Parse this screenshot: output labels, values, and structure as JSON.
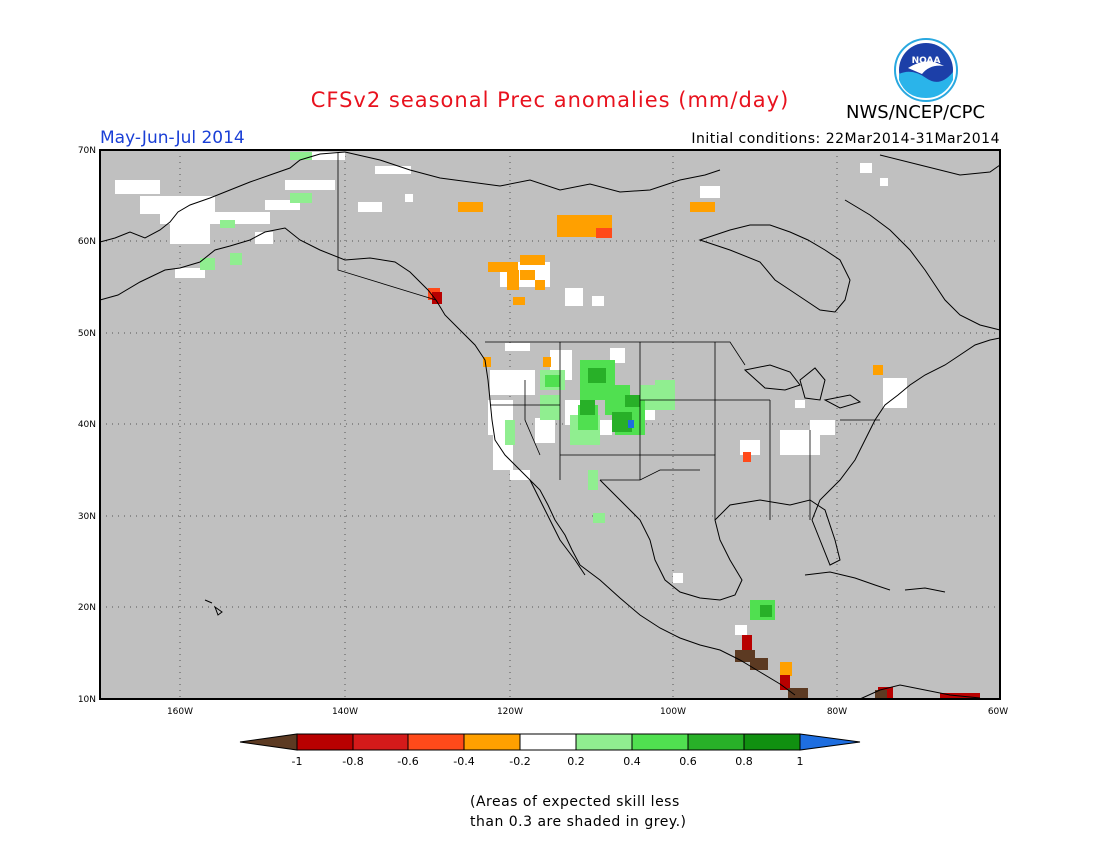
{
  "header": {
    "title": "CFSv2 seasonal Prec anomalies (mm/day)",
    "org": "NWS/NCEP/CPC",
    "logo_text": "NOAA",
    "period": "May-Jun-Jul 2014",
    "initial_conditions": "Initial conditions: 22Mar2014-31Mar2014"
  },
  "map": {
    "background_color": "#c0c0c0",
    "lat_labels": [
      "10N",
      "20N",
      "30N",
      "40N",
      "50N",
      "60N",
      "70N"
    ],
    "lon_labels": [
      "160W",
      "140W",
      "120W",
      "100W",
      "80W",
      "60W"
    ]
  },
  "colorbar": {
    "tick_labels": [
      "-1",
      "-0.8",
      "-0.6",
      "-0.4",
      "-0.2",
      "0.2",
      "0.4",
      "0.6",
      "0.8",
      "1"
    ],
    "colors": [
      "#5c3a22",
      "#b80000",
      "#d41a1a",
      "#ff4a1a",
      "#ffa000",
      "#ffffff",
      "#90ee90",
      "#50e050",
      "#28b028",
      "#109010",
      "#1e6ee0"
    ]
  },
  "footnote": {
    "line1": "(Areas of expected skill less",
    "line2": "than 0.3 are shaded in grey.)"
  }
}
